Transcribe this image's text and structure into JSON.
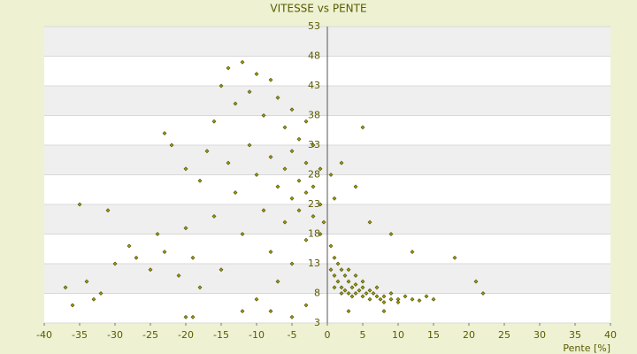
{
  "chart_data": {
    "type": "scatter",
    "title": "VITESSE vs PENTE",
    "x_label": "Pente [%]",
    "color": "#9a9a10",
    "xlim": [
      -40,
      40
    ],
    "xticks": [
      -40,
      -35,
      -30,
      -25,
      -20,
      -15,
      -10,
      -5,
      0,
      5,
      10,
      15,
      20,
      25,
      30,
      35,
      40
    ],
    "ylim": [
      3,
      53
    ],
    "yticks": [
      3,
      8,
      13,
      18,
      23,
      28,
      33,
      38,
      43,
      48,
      53
    ],
    "grid": true,
    "x": [
      -35,
      -31,
      -37,
      -34,
      -32,
      -36,
      -33,
      -30,
      -28,
      -27,
      -25,
      -24,
      -23,
      -23,
      -22,
      -21,
      -20,
      -20,
      -19,
      -18,
      -18,
      -17,
      -16,
      -16,
      -15,
      -15,
      -14,
      -14,
      -13,
      -13,
      -12,
      -12,
      -11,
      -11,
      -10,
      -10,
      -10,
      -9,
      -9,
      -8,
      -8,
      -8,
      -7,
      -7,
      -7,
      -6,
      -6,
      -6,
      -5,
      -5,
      -5,
      -5,
      -4,
      -4,
      -4,
      -3,
      -3,
      -3,
      -3,
      -2,
      -2,
      -2,
      -1,
      -1,
      -1,
      -0.5,
      -20,
      -19,
      -12,
      -8,
      -5,
      -3,
      0.5,
      0.5,
      1,
      1,
      1,
      1.5,
      1.5,
      2,
      2,
      2,
      2.5,
      2.5,
      3,
      3,
      3,
      3.5,
      3.5,
      4,
      4,
      4,
      4.5,
      5,
      5,
      5,
      5.5,
      6,
      6,
      6.5,
      7,
      7,
      7.5,
      8,
      8,
      9,
      9,
      10,
      10,
      11,
      12,
      13,
      14,
      15,
      18,
      21,
      22,
      12,
      9,
      6,
      4,
      2,
      5,
      8,
      3,
      1,
      0.5
    ],
    "values": [
      23,
      22,
      9,
      10,
      8,
      6,
      7,
      13,
      16,
      14,
      12,
      18,
      15,
      35,
      33,
      11,
      29,
      19,
      14,
      27,
      9,
      32,
      37,
      21,
      43,
      12,
      46,
      30,
      40,
      25,
      47,
      18,
      42,
      33,
      45,
      28,
      7,
      38,
      22,
      44,
      31,
      15,
      41,
      26,
      10,
      36,
      29,
      20,
      39,
      32,
      24,
      13,
      34,
      27,
      22,
      37,
      30,
      25,
      17,
      33,
      26,
      21,
      29,
      23,
      18,
      20,
      4,
      4,
      5,
      5,
      4,
      6,
      16,
      12,
      14,
      11,
      9,
      13,
      10,
      12,
      9,
      8,
      11,
      8.5,
      10,
      8,
      12,
      9,
      7.5,
      9.5,
      8,
      11,
      8.5,
      9,
      7.5,
      10,
      8,
      8.5,
      7,
      8,
      7.5,
      9,
      7,
      7.5,
      6.5,
      7,
      8,
      7,
      6.5,
      7.5,
      7,
      6.8,
      7.5,
      7,
      14,
      10,
      8,
      15,
      18,
      20,
      26,
      30,
      36,
      5,
      5,
      24,
      28
    ]
  }
}
